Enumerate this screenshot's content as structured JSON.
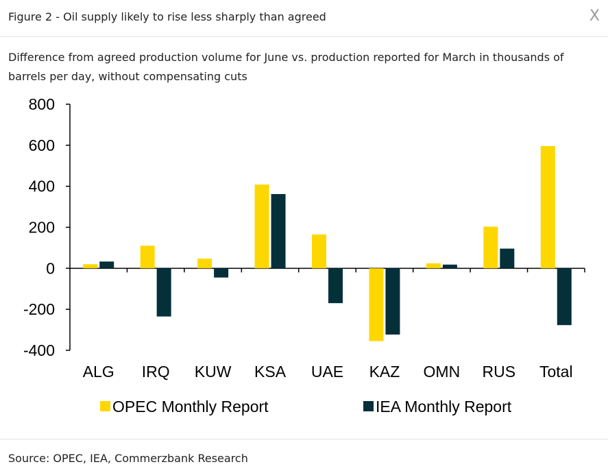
{
  "header": {
    "title": "Figure 2 - Oil supply likely to rise less sharply than agreed",
    "close_label": "X"
  },
  "subtitle": "Difference from agreed production volume for June vs. production reported for March in thousands of barrels per day, without compensating cuts",
  "source": "Source: OPEC, IEA, Commerzbank Research",
  "colors": {
    "opec": "#FFD700",
    "iea": "#05303A",
    "axis": "#000000"
  },
  "chart_data": {
    "type": "bar",
    "categories": [
      "ALG",
      "IRQ",
      "KUW",
      "KSA",
      "UAE",
      "KAZ",
      "OMN",
      "RUS",
      "Total"
    ],
    "series": [
      {
        "name": "OPEC Monthly Report",
        "values": [
          20,
          110,
          47,
          408,
          165,
          -355,
          24,
          203,
          596
        ]
      },
      {
        "name": "IEA Monthly Report",
        "values": [
          33,
          -235,
          -45,
          362,
          -170,
          -323,
          18,
          96,
          -277
        ]
      }
    ],
    "ylim": [
      -400,
      800
    ],
    "yticks": [
      800,
      600,
      400,
      200,
      0,
      -200,
      -400
    ],
    "ytick_labels": [
      "800",
      "600",
      "400",
      "200",
      "0",
      "-200",
      "-400"
    ],
    "legend_placement": "bottom",
    "grid": false
  }
}
